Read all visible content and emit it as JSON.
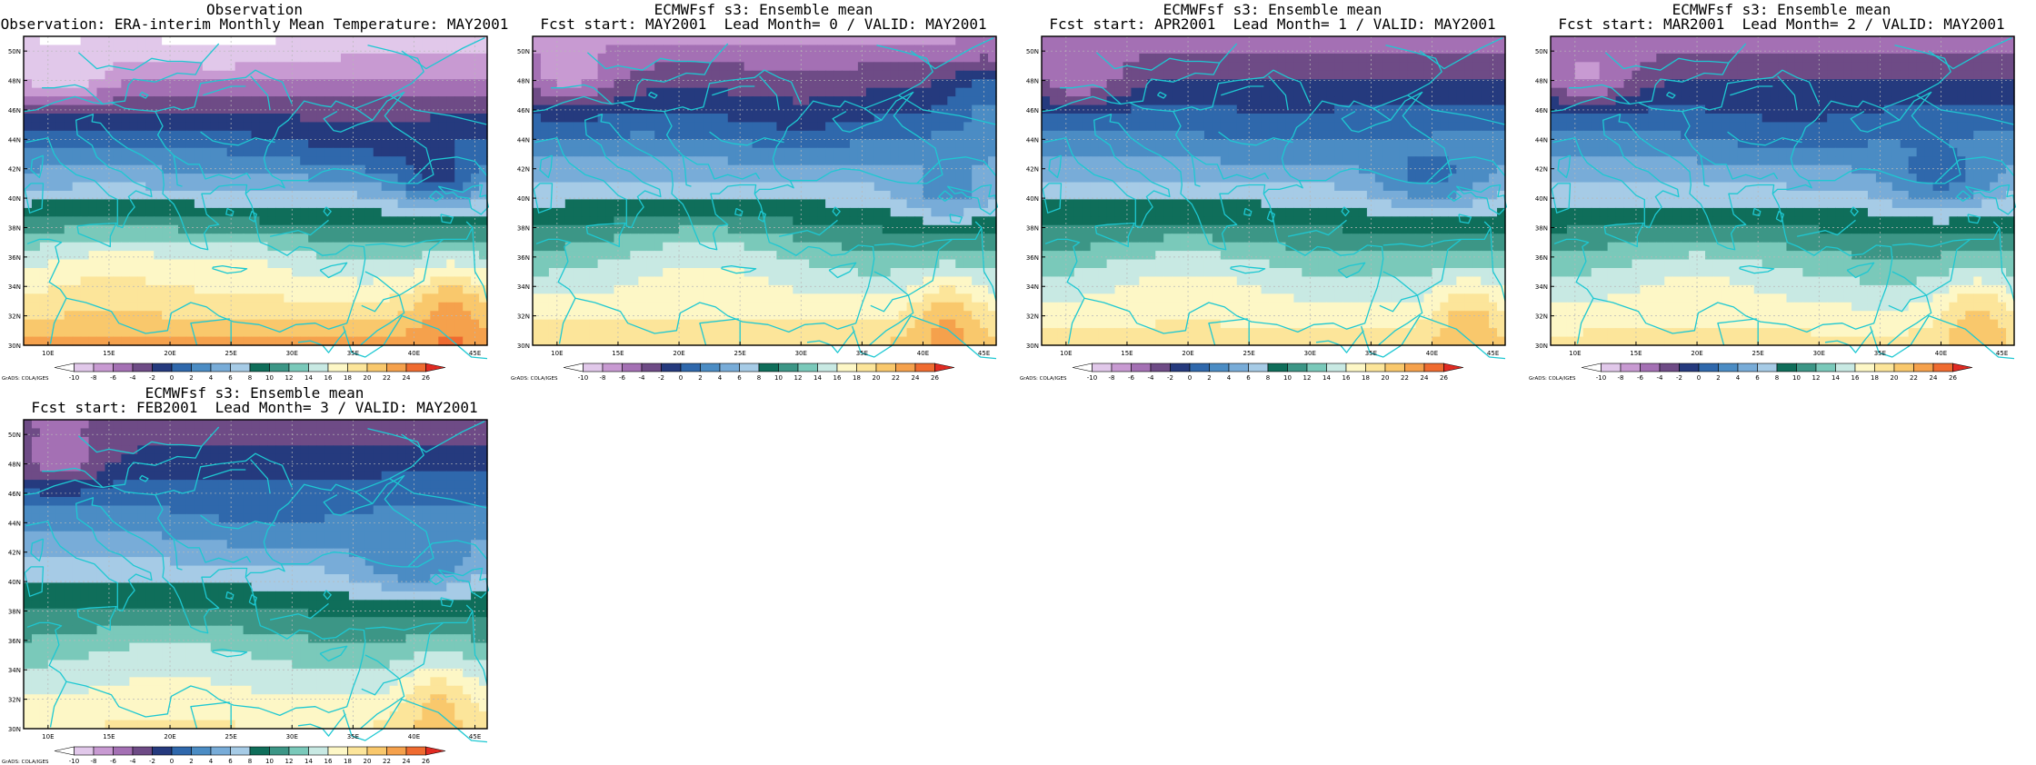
{
  "panels": [
    {
      "title1": "Observation",
      "title2": "Observation: ERA-interim Monthly Mean Temperature: MAY2001"
    },
    {
      "title1": "ECMWFsf s3: Ensemble mean",
      "title2": "Fcst start: MAY2001  Lead Month= 0 / VALID: MAY2001"
    },
    {
      "title1": "ECMWFsf s3: Ensemble mean",
      "title2": "Fcst start: APR2001  Lead Month= 1 / VALID: MAY2001"
    },
    {
      "title1": "ECMWFsf s3: Ensemble mean",
      "title2": "Fcst start: MAR2001  Lead Month= 2 / VALID: MAY2001"
    },
    {
      "title1": "ECMWFsf s3: Ensemble mean",
      "title2": "Fcst start: FEB2001  Lead Month= 3 / VALID: MAY2001"
    }
  ],
  "lat_labels": [
    "30N",
    "32N",
    "34N",
    "36N",
    "38N",
    "40N",
    "42N",
    "44N",
    "46N",
    "48N",
    "50N"
  ],
  "lon_labels": [
    "10E",
    "15E",
    "20E",
    "25E",
    "30E",
    "35E",
    "40E",
    "45E"
  ],
  "colorbar": {
    "levels": [
      "-10",
      "-8",
      "-6",
      "-4",
      "-2",
      "0",
      "2",
      "4",
      "6",
      "8",
      "10",
      "12",
      "14",
      "16",
      "18",
      "20",
      "22",
      "24",
      "26"
    ],
    "colors": [
      "#ffffff",
      "#e1c8ea",
      "#c89ad2",
      "#a470b4",
      "#6e4b86",
      "#253a7e",
      "#2f68ac",
      "#4b8cc4",
      "#78acd8",
      "#a6cbe6",
      "#0f6e5a",
      "#3c9686",
      "#7ac9ba",
      "#c8e9e3",
      "#fdf7c6",
      "#fce59a",
      "#f9c86c",
      "#f5a14c",
      "#ef6b30",
      "#e02a22"
    ],
    "credit": "GrADS: COLA/IGES"
  },
  "legend": {
    "value_min": 10,
    "value_max": 28,
    "steps": [
      0.0,
      0.22,
      0.42,
      0.6,
      0.75,
      0.86,
      0.93,
      1.0
    ],
    "colors": [
      "#c8e9e3",
      "#fdf7c6",
      "#fce59a",
      "#f9c86c",
      "#f5a14c",
      "#ef6b30",
      "#e02a22",
      "#e02a22"
    ]
  }
}
